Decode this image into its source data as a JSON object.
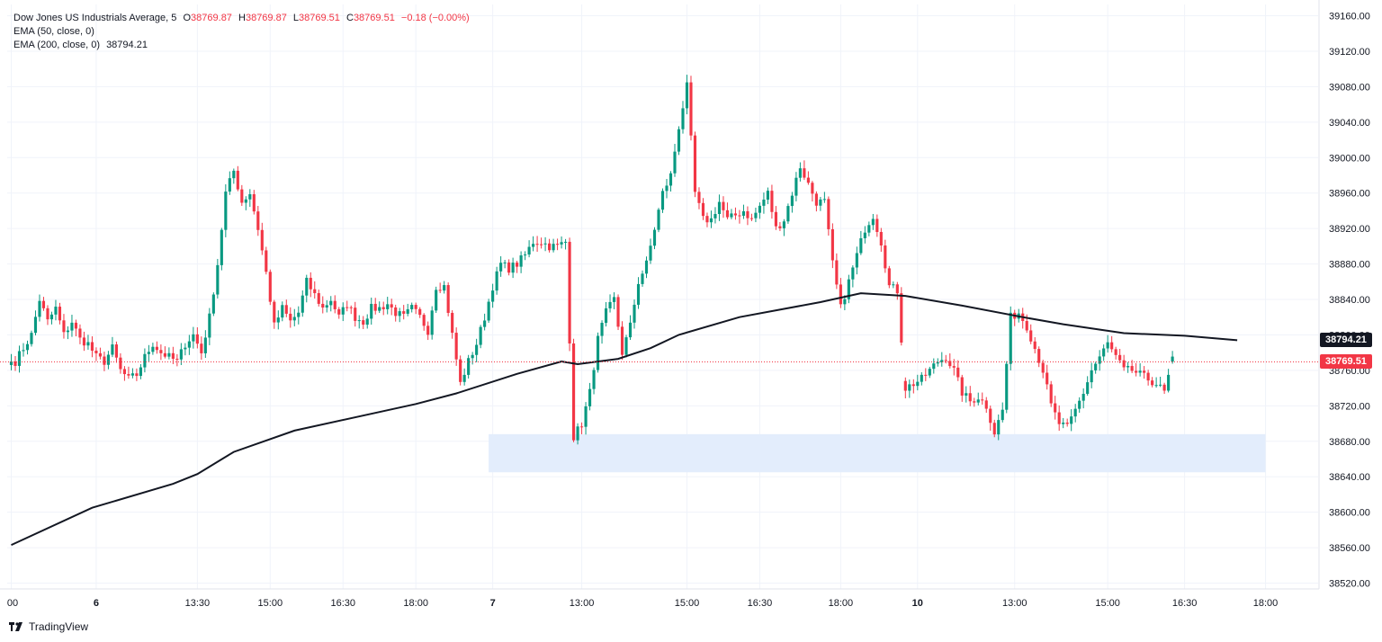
{
  "legend": {
    "symbol": "Dow Jones US Industrials Average",
    "interval": "5",
    "ohlc": {
      "open_label": "O",
      "open": "38769.87",
      "high_label": "H",
      "high": "38769.87",
      "low_label": "L",
      "low": "38769.51",
      "close_label": "C",
      "close": "38769.51",
      "change": "−0.18 (−0.00%)"
    },
    "ema50": "EMA (50, close, 0)",
    "ema200": "EMA (200, close, 0)",
    "ema200_value": "38794.21"
  },
  "price_tags": {
    "ema200": "38794.21",
    "last": "38769.51"
  },
  "brand": "TradingView",
  "colors": {
    "up": "#089981",
    "down": "#f23645",
    "ema": "#131722",
    "zone": "#e3edfc",
    "grid": "#f0f3fa",
    "last_line": "#f23645",
    "ema_tag": "#131722"
  },
  "chart_data": {
    "type": "candlestick",
    "symbol": "Dow Jones US Industrials Average",
    "interval": "5",
    "ylim": [
      38500,
      39180
    ],
    "y_ticks": [
      "39160.00",
      "39120.00",
      "39080.00",
      "39040.00",
      "39000.00",
      "38960.00",
      "38920.00",
      "38880.00",
      "38840.00",
      "38800.00",
      "38760.00",
      "38720.00",
      "38680.00",
      "38640.00",
      "38600.00",
      "38560.00",
      "38520.00"
    ],
    "x_ticks": [
      {
        "label": "00",
        "index": 0
      },
      {
        "label": "6",
        "index": 21
      },
      {
        "label": "13:30",
        "index": 46
      },
      {
        "label": "15:00",
        "index": 64
      },
      {
        "label": "16:30",
        "index": 82
      },
      {
        "label": "18:00",
        "index": 100
      },
      {
        "label": "7",
        "index": 119
      },
      {
        "label": "13:00",
        "index": 141
      },
      {
        "label": "15:00",
        "index": 167
      },
      {
        "label": "16:30",
        "index": 185
      },
      {
        "label": "18:00",
        "index": 205
      },
      {
        "label": "10",
        "index": 224
      },
      {
        "label": "13:00",
        "index": 248
      },
      {
        "label": "15:00",
        "index": 271
      },
      {
        "label": "16:30",
        "index": 290
      },
      {
        "label": "18:00",
        "index": 310
      }
    ],
    "bar_count": 322,
    "support_zone": {
      "from_index": 118,
      "to_index": 310,
      "low": 38645,
      "high": 38688
    },
    "last_price": 38769.51,
    "ema200_last": 38794.21,
    "candles": [
      [
        1,
        38770
      ],
      [
        3,
        38785
      ],
      [
        5,
        38800
      ],
      [
        7,
        38840
      ],
      [
        9,
        38815
      ],
      [
        11,
        38830
      ],
      [
        13,
        38800
      ],
      [
        15,
        38815
      ],
      [
        17,
        38795
      ],
      [
        19,
        38790
      ],
      [
        21,
        38775
      ],
      [
        23,
        38770
      ],
      [
        25,
        38785
      ],
      [
        27,
        38760
      ],
      [
        29,
        38750
      ],
      [
        31,
        38755
      ],
      [
        33,
        38775
      ],
      [
        35,
        38790
      ],
      [
        37,
        38780
      ],
      [
        39,
        38775
      ],
      [
        41,
        38770
      ],
      [
        43,
        38790
      ],
      [
        45,
        38800
      ],
      [
        47,
        38780
      ],
      [
        49,
        38820
      ],
      [
        51,
        38880
      ],
      [
        53,
        38960
      ],
      [
        55,
        38985
      ],
      [
        57,
        38950
      ],
      [
        59,
        38960
      ],
      [
        61,
        38920
      ],
      [
        63,
        38870
      ],
      [
        65,
        38810
      ],
      [
        67,
        38830
      ],
      [
        69,
        38815
      ],
      [
        71,
        38825
      ],
      [
        73,
        38860
      ],
      [
        75,
        38845
      ],
      [
        77,
        38830
      ],
      [
        79,
        38840
      ],
      [
        81,
        38820
      ],
      [
        83,
        38835
      ],
      [
        85,
        38820
      ],
      [
        87,
        38815
      ],
      [
        89,
        38830
      ],
      [
        91,
        38830
      ],
      [
        93,
        38835
      ],
      [
        95,
        38825
      ],
      [
        97,
        38820
      ],
      [
        99,
        38830
      ],
      [
        101,
        38820
      ],
      [
        103,
        38805
      ],
      [
        105,
        38855
      ],
      [
        107,
        38855
      ],
      [
        109,
        38800
      ],
      [
        111,
        38745
      ],
      [
        113,
        38770
      ],
      [
        115,
        38790
      ],
      [
        117,
        38820
      ],
      [
        119,
        38855
      ],
      [
        121,
        38880
      ],
      [
        123,
        38875
      ],
      [
        125,
        38880
      ],
      [
        127,
        38890
      ],
      [
        129,
        38905
      ],
      [
        131,
        38905
      ],
      [
        133,
        38900
      ],
      [
        135,
        38900
      ],
      [
        137,
        38905
      ],
      [
        139,
        38685
      ],
      [
        141,
        38700
      ],
      [
        143,
        38735
      ],
      [
        145,
        38795
      ],
      [
        147,
        38825
      ],
      [
        149,
        38840
      ],
      [
        151,
        38780
      ],
      [
        153,
        38810
      ],
      [
        155,
        38860
      ],
      [
        157,
        38880
      ],
      [
        159,
        38920
      ],
      [
        161,
        38960
      ],
      [
        163,
        38980
      ],
      [
        165,
        39035
      ],
      [
        167,
        39080
      ],
      [
        169,
        38960
      ],
      [
        171,
        38930
      ],
      [
        173,
        38930
      ],
      [
        175,
        38950
      ],
      [
        177,
        38930
      ],
      [
        179,
        38935
      ],
      [
        181,
        38940
      ],
      [
        183,
        38930
      ],
      [
        185,
        38945
      ],
      [
        187,
        38960
      ],
      [
        189,
        38920
      ],
      [
        191,
        38930
      ],
      [
        193,
        38960
      ],
      [
        195,
        38990
      ],
      [
        197,
        38970
      ],
      [
        199,
        38950
      ],
      [
        201,
        38950
      ],
      [
        203,
        38880
      ],
      [
        205,
        38830
      ],
      [
        207,
        38860
      ],
      [
        209,
        38890
      ],
      [
        211,
        38920
      ],
      [
        213,
        38935
      ],
      [
        215,
        38905
      ],
      [
        217,
        38855
      ],
      [
        219,
        38850
      ],
      [
        221,
        38740
      ],
      [
        223,
        38745
      ],
      [
        225,
        38750
      ],
      [
        227,
        38760
      ],
      [
        229,
        38770
      ],
      [
        231,
        38775
      ],
      [
        233,
        38760
      ],
      [
        235,
        38735
      ],
      [
        237,
        38725
      ],
      [
        239,
        38730
      ],
      [
        241,
        38720
      ],
      [
        243,
        38690
      ],
      [
        245,
        38715
      ],
      [
        247,
        38820
      ],
      [
        249,
        38825
      ],
      [
        251,
        38810
      ],
      [
        253,
        38785
      ],
      [
        255,
        38760
      ],
      [
        257,
        38720
      ],
      [
        259,
        38700
      ],
      [
        261,
        38695
      ],
      [
        263,
        38715
      ],
      [
        265,
        38735
      ],
      [
        267,
        38760
      ],
      [
        269,
        38775
      ],
      [
        271,
        38790
      ],
      [
        273,
        38775
      ],
      [
        275,
        38760
      ],
      [
        277,
        38760
      ],
      [
        279,
        38755
      ],
      [
        281,
        38750
      ],
      [
        283,
        38745
      ],
      [
        285,
        38735
      ],
      [
        287,
        38770
      ]
    ]
  }
}
